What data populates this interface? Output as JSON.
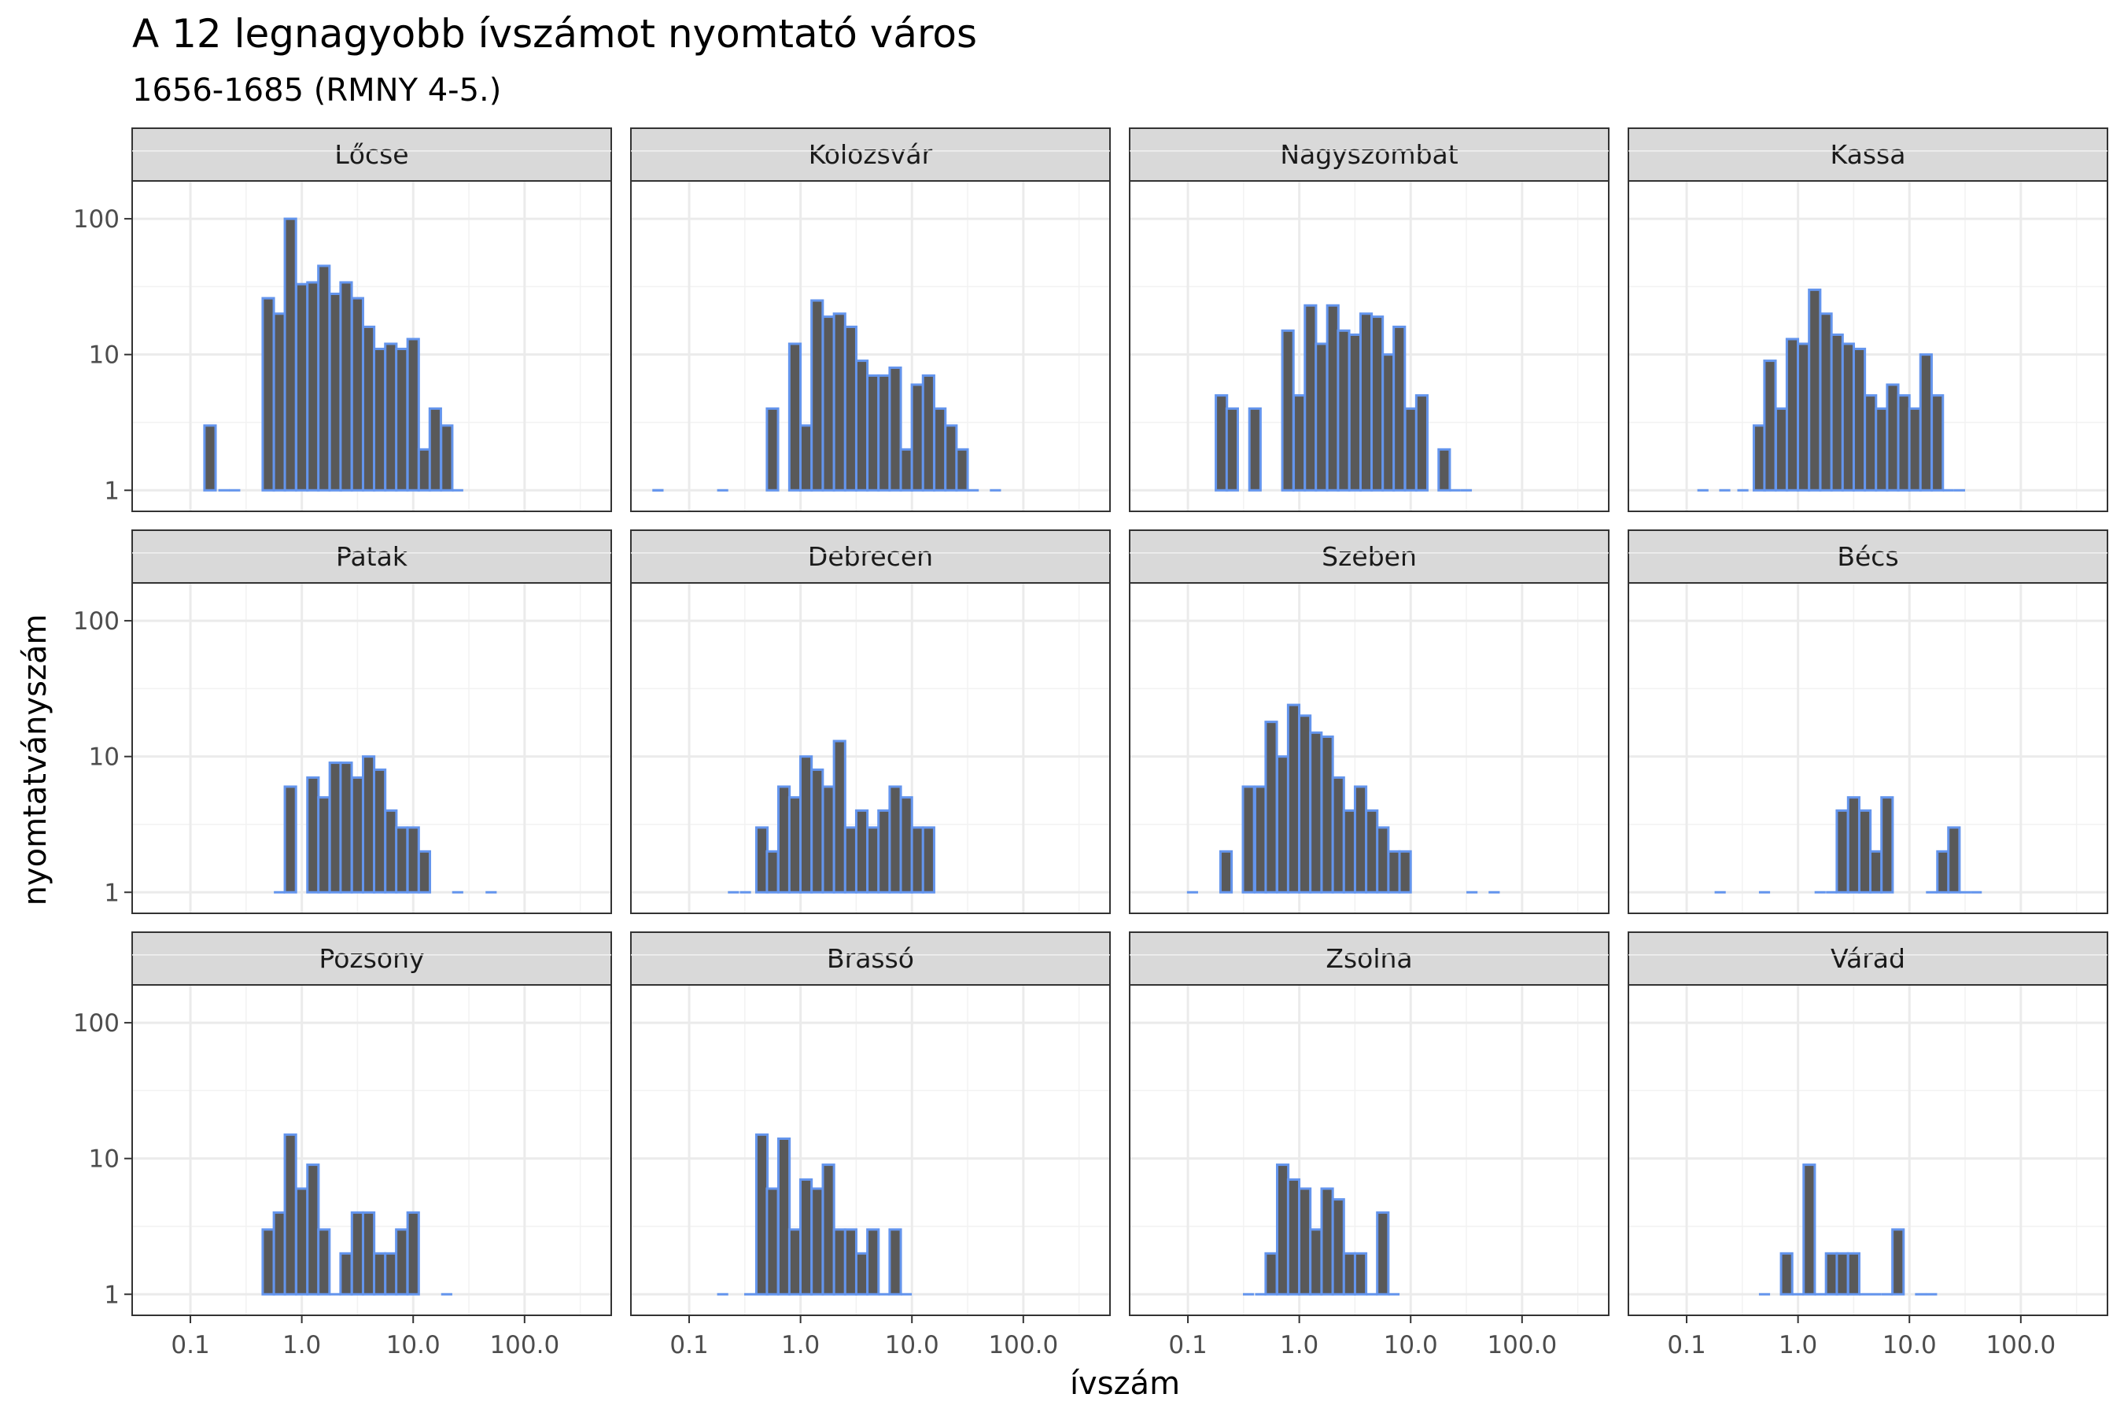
{
  "chart_data": {
    "type": "bar",
    "title": "A 12 legnagyobb ívszámot nyomtató város",
    "subtitle": "1656-1685 (RMNY 4-5.)",
    "xlabel": "ívszám",
    "ylabel": "nyomtatványszám",
    "x_scale": "log10",
    "y_scale": "log10",
    "xlim": [
      0.03,
      600
    ],
    "ylim": [
      0.7,
      190
    ],
    "x_ticks": [
      "0.1",
      "1.0",
      "10.0",
      "100.0"
    ],
    "y_ticks": [
      "1",
      "10",
      "100"
    ],
    "grid": true,
    "bar_fill": "#595959",
    "bar_outline": "#6495ED",
    "strip_fill": "#D9D9D9",
    "facets": [
      {
        "name": "Lőcse",
        "bins": [
          [
            0.15,
            3
          ],
          [
            0.2,
            1
          ],
          [
            0.25,
            1
          ],
          [
            0.5,
            26
          ],
          [
            0.63,
            20
          ],
          [
            0.79,
            100
          ],
          [
            1.0,
            33
          ],
          [
            1.26,
            34
          ],
          [
            1.58,
            45
          ],
          [
            2.0,
            28
          ],
          [
            2.5,
            34
          ],
          [
            3.16,
            26
          ],
          [
            3.98,
            16
          ],
          [
            5.0,
            11
          ],
          [
            6.3,
            12
          ],
          [
            7.9,
            11
          ],
          [
            10.0,
            13
          ],
          [
            12.6,
            2
          ],
          [
            15.8,
            4
          ],
          [
            20.0,
            3
          ],
          [
            25.1,
            1
          ]
        ]
      },
      {
        "name": "Kolozsvár",
        "bins": [
          [
            0.0525,
            1
          ],
          [
            0.0525,
            1
          ],
          [
            0.2,
            1
          ],
          [
            0.56,
            4
          ],
          [
            0.89,
            12
          ],
          [
            1.12,
            3
          ],
          [
            1.41,
            25
          ],
          [
            1.78,
            19
          ],
          [
            2.24,
            20
          ],
          [
            2.82,
            16
          ],
          [
            3.55,
            9
          ],
          [
            4.47,
            7
          ],
          [
            5.62,
            7
          ],
          [
            7.08,
            8
          ],
          [
            8.91,
            2
          ],
          [
            11.2,
            6
          ],
          [
            14.1,
            7
          ],
          [
            17.8,
            4
          ],
          [
            22.4,
            3
          ],
          [
            28.2,
            2
          ],
          [
            35.5,
            1
          ],
          [
            56.2,
            1
          ]
        ]
      },
      {
        "name": "Nagyszombat",
        "bins": [
          [
            0.2,
            5
          ],
          [
            0.25,
            4
          ],
          [
            0.4,
            4
          ],
          [
            0.79,
            15
          ],
          [
            1.0,
            5
          ],
          [
            1.26,
            23
          ],
          [
            1.58,
            12
          ],
          [
            2.0,
            23
          ],
          [
            2.5,
            15
          ],
          [
            3.16,
            14
          ],
          [
            3.98,
            20
          ],
          [
            5.0,
            19
          ],
          [
            6.3,
            10
          ],
          [
            7.9,
            16
          ],
          [
            10.0,
            4
          ],
          [
            12.6,
            5
          ],
          [
            20.0,
            2
          ],
          [
            25.1,
            1
          ],
          [
            31.6,
            1
          ]
        ]
      },
      {
        "name": "Kassa",
        "bins": [
          [
            0.14,
            1
          ],
          [
            0.22,
            1
          ],
          [
            0.32,
            1
          ],
          [
            0.45,
            3
          ],
          [
            0.56,
            9
          ],
          [
            0.71,
            4
          ],
          [
            0.89,
            13
          ],
          [
            1.12,
            12
          ],
          [
            1.41,
            30
          ],
          [
            1.78,
            20
          ],
          [
            2.24,
            14
          ],
          [
            2.82,
            12
          ],
          [
            3.55,
            11
          ],
          [
            4.47,
            5
          ],
          [
            5.62,
            4
          ],
          [
            7.08,
            6
          ],
          [
            8.91,
            5
          ],
          [
            11.2,
            4
          ],
          [
            14.1,
            10
          ],
          [
            17.8,
            5
          ],
          [
            22.4,
            1
          ],
          [
            28.2,
            1
          ]
        ]
      },
      {
        "name": "Patak",
        "bins": [
          [
            0.63,
            1
          ],
          [
            0.79,
            6
          ],
          [
            1.26,
            7
          ],
          [
            1.58,
            5
          ],
          [
            2.0,
            9
          ],
          [
            2.5,
            9
          ],
          [
            3.16,
            7
          ],
          [
            3.98,
            10
          ],
          [
            5.0,
            8
          ],
          [
            6.3,
            4
          ],
          [
            7.9,
            3
          ],
          [
            10.0,
            3
          ],
          [
            12.6,
            2
          ],
          [
            25.1,
            1
          ],
          [
            50.1,
            1
          ]
        ]
      },
      {
        "name": "Debrecen",
        "bins": [
          [
            0.25,
            1
          ],
          [
            0.32,
            1
          ],
          [
            0.45,
            3
          ],
          [
            0.56,
            2
          ],
          [
            0.71,
            6
          ],
          [
            0.89,
            5
          ],
          [
            1.12,
            10
          ],
          [
            1.41,
            8
          ],
          [
            1.78,
            6
          ],
          [
            2.24,
            13
          ],
          [
            2.82,
            3
          ],
          [
            3.55,
            4
          ],
          [
            4.47,
            3
          ],
          [
            5.62,
            4
          ],
          [
            7.08,
            6
          ],
          [
            8.91,
            5
          ],
          [
            11.2,
            3
          ],
          [
            14.1,
            3
          ]
        ]
      },
      {
        "name": "Szeben",
        "bins": [
          [
            0.11,
            1
          ],
          [
            0.22,
            2
          ],
          [
            0.35,
            6
          ],
          [
            0.45,
            6
          ],
          [
            0.56,
            18
          ],
          [
            0.71,
            10
          ],
          [
            0.89,
            24
          ],
          [
            1.12,
            20
          ],
          [
            1.41,
            15
          ],
          [
            1.78,
            14
          ],
          [
            2.24,
            7
          ],
          [
            2.82,
            4
          ],
          [
            3.55,
            6
          ],
          [
            4.47,
            4
          ],
          [
            5.62,
            3
          ],
          [
            7.08,
            2
          ],
          [
            8.91,
            2
          ],
          [
            35.5,
            1
          ],
          [
            56.2,
            1
          ]
        ]
      },
      {
        "name": "Bécs",
        "bins": [
          [
            0.2,
            1
          ],
          [
            0.5,
            1
          ],
          [
            1.58,
            1
          ],
          [
            2.0,
            1
          ],
          [
            2.5,
            4
          ],
          [
            3.16,
            5
          ],
          [
            3.98,
            4
          ],
          [
            5.0,
            2
          ],
          [
            6.3,
            5
          ],
          [
            15.8,
            1
          ],
          [
            20.0,
            2
          ],
          [
            25.1,
            3
          ],
          [
            31.6,
            1
          ],
          [
            39.8,
            1
          ]
        ]
      },
      {
        "name": "Pozsony",
        "bins": [
          [
            0.5,
            3
          ],
          [
            0.63,
            4
          ],
          [
            0.79,
            15
          ],
          [
            1.0,
            6
          ],
          [
            1.26,
            9
          ],
          [
            1.58,
            3
          ],
          [
            2.0,
            1
          ],
          [
            2.5,
            2
          ],
          [
            3.16,
            4
          ],
          [
            3.98,
            4
          ],
          [
            5.0,
            2
          ],
          [
            6.3,
            2
          ],
          [
            7.9,
            3
          ],
          [
            10.0,
            4
          ],
          [
            20.0,
            1
          ]
        ]
      },
      {
        "name": "Brassó",
        "bins": [
          [
            0.2,
            1
          ],
          [
            0.35,
            1
          ],
          [
            0.45,
            15
          ],
          [
            0.56,
            6
          ],
          [
            0.71,
            14
          ],
          [
            0.89,
            3
          ],
          [
            1.12,
            7
          ],
          [
            1.41,
            6
          ],
          [
            1.78,
            9
          ],
          [
            2.24,
            3
          ],
          [
            2.82,
            3
          ],
          [
            3.55,
            2
          ],
          [
            4.47,
            3
          ],
          [
            5.62,
            1
          ],
          [
            7.08,
            3
          ],
          [
            8.91,
            1
          ]
        ]
      },
      {
        "name": "Zsolna",
        "bins": [
          [
            0.35,
            1
          ],
          [
            0.45,
            1
          ],
          [
            0.56,
            2
          ],
          [
            0.71,
            9
          ],
          [
            0.89,
            7
          ],
          [
            1.12,
            6
          ],
          [
            1.41,
            3
          ],
          [
            1.78,
            6
          ],
          [
            2.24,
            5
          ],
          [
            2.82,
            2
          ],
          [
            3.55,
            2
          ],
          [
            4.47,
            1
          ],
          [
            5.62,
            4
          ],
          [
            7.08,
            1
          ]
        ]
      },
      {
        "name": "Várad",
        "bins": [
          [
            0.5,
            1
          ],
          [
            0.79,
            2
          ],
          [
            1.0,
            1
          ],
          [
            1.26,
            9
          ],
          [
            1.58,
            1
          ],
          [
            2.0,
            2
          ],
          [
            2.5,
            2
          ],
          [
            3.16,
            2
          ],
          [
            3.98,
            1
          ],
          [
            5.0,
            1
          ],
          [
            6.3,
            1
          ],
          [
            7.9,
            3
          ],
          [
            12.6,
            1
          ],
          [
            15.8,
            1
          ]
        ]
      }
    ]
  }
}
